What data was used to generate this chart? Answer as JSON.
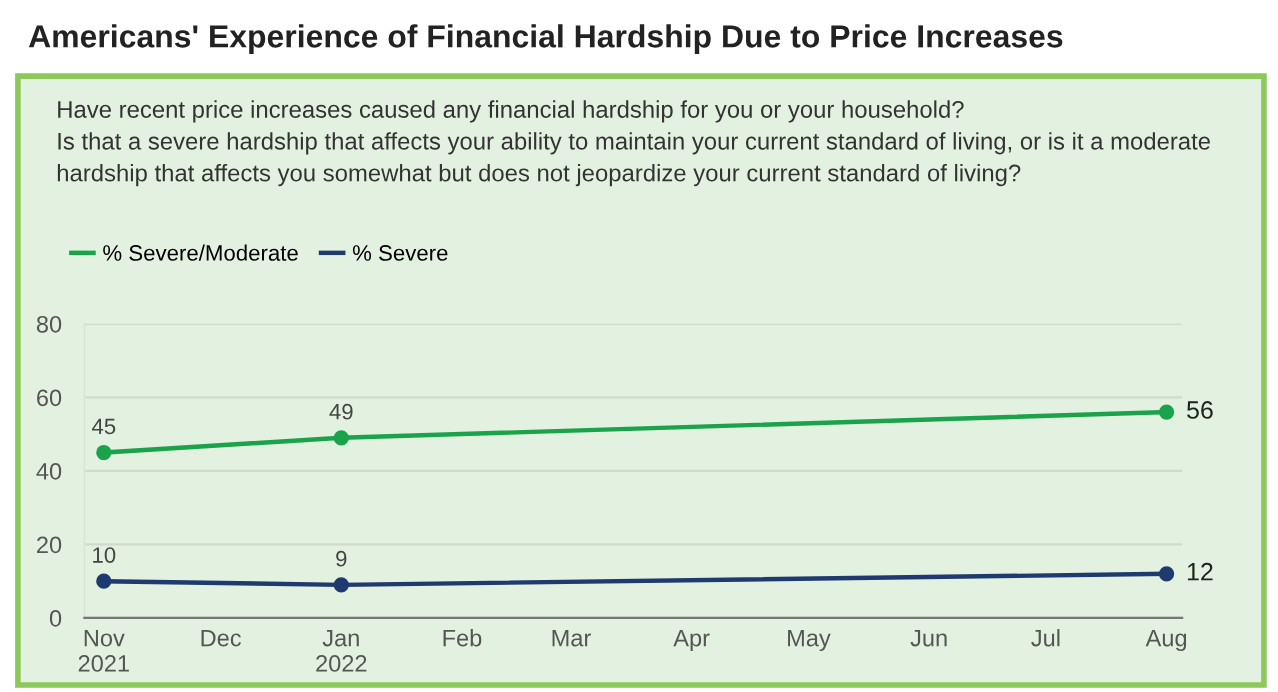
{
  "chart_data": {
    "type": "line",
    "title": "Americans' Experience of Financial Hardship Due to Price Increases",
    "subtitle": "Have recent price increases caused any financial hardship for you or your household?\nIs that a severe hardship that affects your ability to maintain your current standard of living, or is it a moderate\nhardship that affects you somewhat but does not jeopardize your current standard of living?",
    "x": [
      "2021-11",
      "2022-01",
      "2022-08"
    ],
    "series": [
      {
        "name": "% Severe/Moderate",
        "color": "#1aa34a",
        "values": [
          45,
          49,
          56
        ]
      },
      {
        "name": "% Severe",
        "color": "#1f3a6e",
        "values": [
          10,
          9,
          12
        ]
      }
    ],
    "xlim": [
      "2021-10-27",
      "2022-08-05"
    ],
    "xticks": [
      {
        "value": "2021-11",
        "label": "Nov\n2021"
      },
      {
        "value": "2021-12",
        "label": "Dec"
      },
      {
        "value": "2022-01",
        "label": "Jan\n2022"
      },
      {
        "value": "2022-02",
        "label": "Feb"
      },
      {
        "value": "2022-03",
        "label": "Mar"
      },
      {
        "value": "2022-04",
        "label": "Apr"
      },
      {
        "value": "2022-05",
        "label": "May"
      },
      {
        "value": "2022-06",
        "label": "Jun"
      },
      {
        "value": "2022-07",
        "label": "Jul"
      },
      {
        "value": "2022-08",
        "label": "Aug"
      }
    ],
    "ylim": [
      0,
      80
    ],
    "yticks": [
      0,
      20,
      40,
      60,
      80
    ],
    "grid": "y",
    "legend": "top left",
    "marker": "circle",
    "line_style": "solid",
    "data_labels": true
  }
}
